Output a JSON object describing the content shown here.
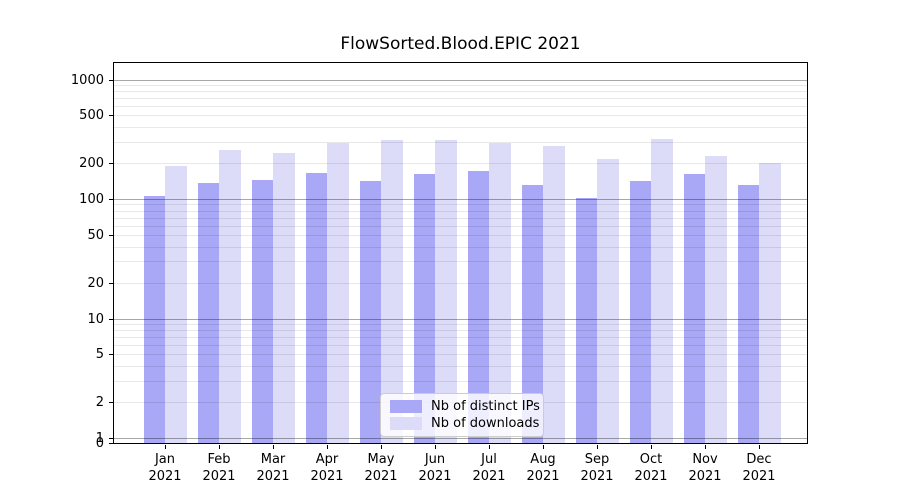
{
  "figure": {
    "background": "#ffffff"
  },
  "chart_data": {
    "type": "bar",
    "title": "FlowSorted.Blood.EPIC 2021",
    "categories": [
      "Jan",
      "Feb",
      "Mar",
      "Apr",
      "May",
      "Jun",
      "Jul",
      "Aug",
      "Sep",
      "Oct",
      "Nov",
      "Dec"
    ],
    "category_year": "2021",
    "x_tick_labels": [
      [
        "Jan",
        "2021"
      ],
      [
        "Feb",
        "2021"
      ],
      [
        "Mar",
        "2021"
      ],
      [
        "Apr",
        "2021"
      ],
      [
        "May",
        "2021"
      ],
      [
        "Jun",
        "2021"
      ],
      [
        "Jul",
        "2021"
      ],
      [
        "Aug",
        "2021"
      ],
      [
        "Sep",
        "2021"
      ],
      [
        "Oct",
        "2021"
      ],
      [
        "Nov",
        "2021"
      ],
      [
        "Dec",
        "2021"
      ]
    ],
    "series": [
      {
        "name": "Nb of distinct IPs",
        "color": "#a8a8f7",
        "values": [
          107,
          135,
          145,
          164,
          142,
          163,
          172,
          131,
          101,
          141,
          163,
          131
        ]
      },
      {
        "name": "Nb of downloads",
        "color": "#dcdcf9",
        "values": [
          189,
          255,
          244,
          292,
          310,
          310,
          293,
          279,
          216,
          317,
          230,
          200
        ]
      }
    ],
    "xlabel": "",
    "ylabel": "",
    "y_scale": "log (symlog: 0 rendered at axis base)",
    "y_ticks": [
      0,
      1,
      2,
      5,
      10,
      20,
      50,
      100,
      200,
      500,
      1000
    ],
    "y_major_gridlines": [
      1,
      10,
      100,
      1000
    ],
    "ylim": [
      0,
      1430
    ],
    "grid": {
      "horizontal": "on",
      "minor_log_lines": "on",
      "drawn_above_bars": true
    },
    "legend": {
      "position": "lower center",
      "frame": "rounded, semi-transparent white"
    }
  },
  "colors": {
    "spine": "#000000",
    "major_grid": "rgba(0,0,0,0.34)",
    "minor_grid": "rgba(0,0,0,0.09)",
    "text": "#000000"
  }
}
